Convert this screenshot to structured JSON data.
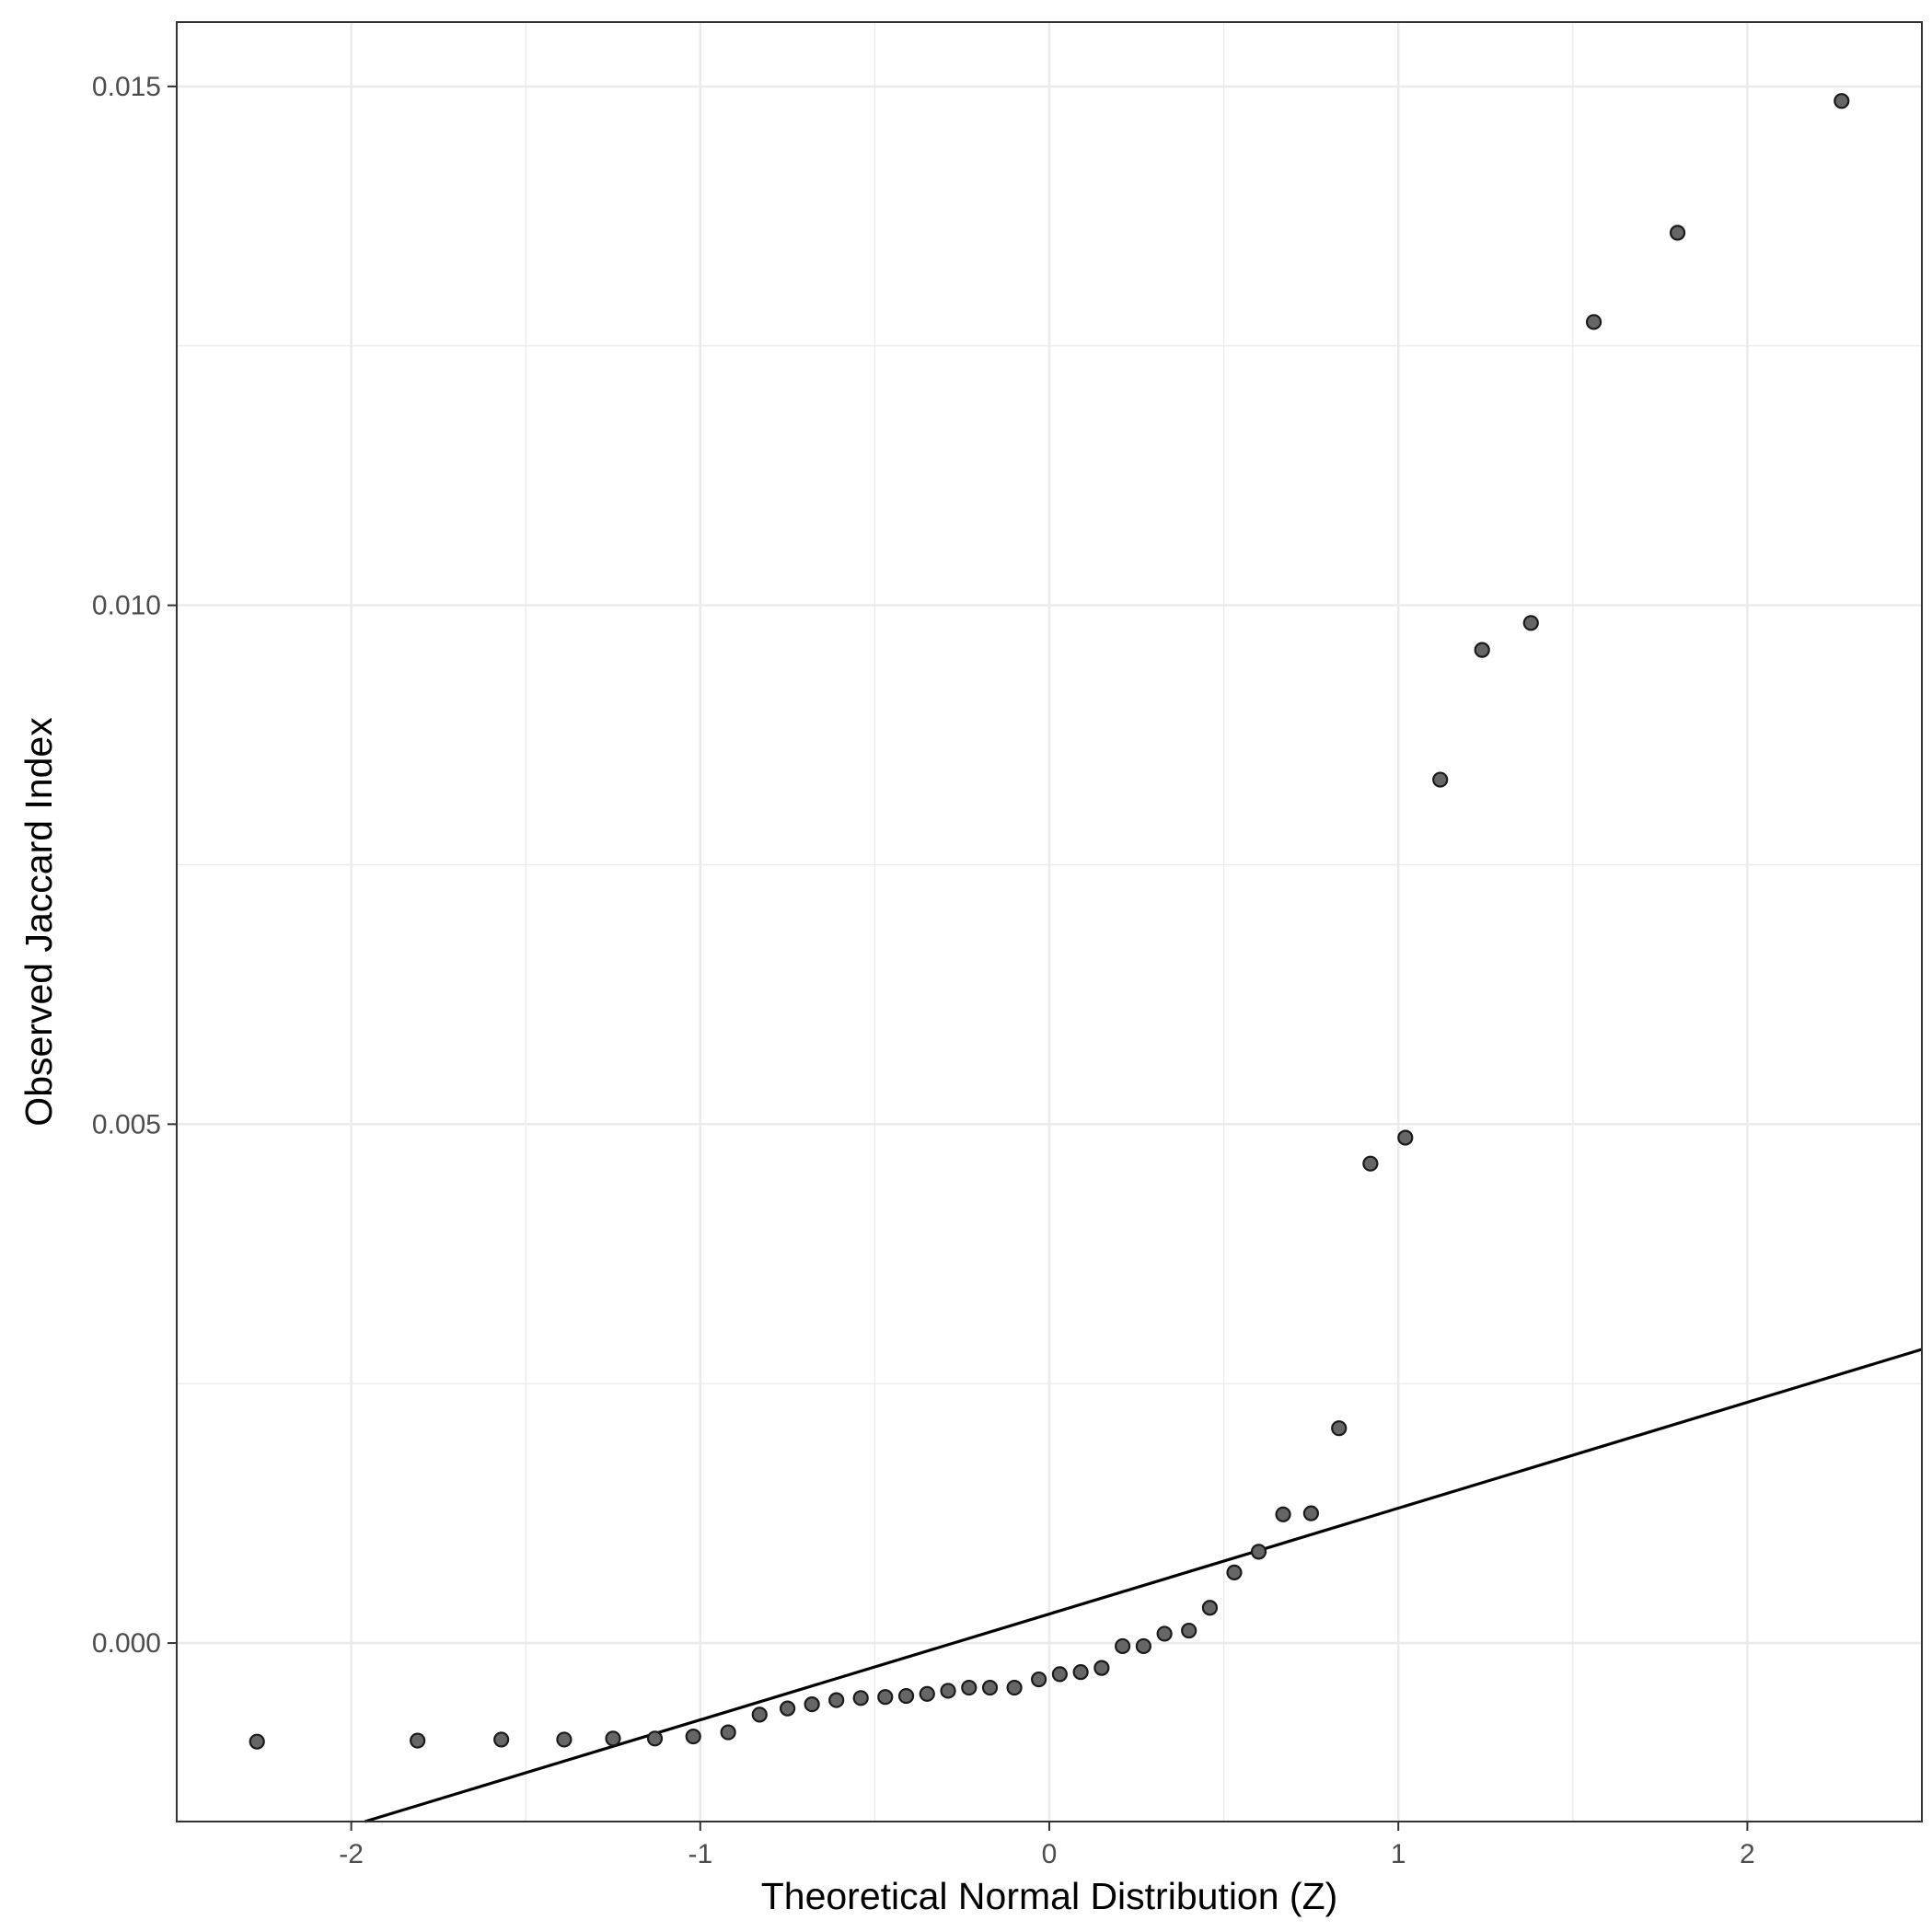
{
  "chart_data": {
    "type": "scatter",
    "title": "",
    "xlabel": "Theoretical Normal Distribution (Z)",
    "ylabel": "Observed Jaccard Index",
    "xlim": [
      -2.5,
      2.5
    ],
    "ylim": [
      -0.00172,
      0.01562
    ],
    "x_ticks": [
      -2,
      -1,
      0,
      1,
      2
    ],
    "x_tick_labels": [
      "-2",
      "-1",
      "0",
      "1",
      "2"
    ],
    "y_ticks": [
      0.0,
      0.005,
      0.01,
      0.015
    ],
    "y_tick_labels": [
      "0.000",
      "0.005",
      "0.010",
      "0.015"
    ],
    "grid": true,
    "legend": "none",
    "colors": {
      "point_fill": "#666666",
      "point_stroke": "#1a1a1a",
      "line": "#000000",
      "grid": "#ebebeb",
      "panel_border": "#333333"
    },
    "reference_line": {
      "slope": 0.00102,
      "intercept": 0.00028
    },
    "points": [
      {
        "x": -2.27,
        "y": -0.00095
      },
      {
        "x": -1.81,
        "y": -0.00094
      },
      {
        "x": -1.57,
        "y": -0.00093
      },
      {
        "x": -1.39,
        "y": -0.00093
      },
      {
        "x": -1.25,
        "y": -0.00092
      },
      {
        "x": -1.13,
        "y": -0.00092
      },
      {
        "x": -1.02,
        "y": -0.0009
      },
      {
        "x": -0.92,
        "y": -0.00086
      },
      {
        "x": -0.83,
        "y": -0.00069
      },
      {
        "x": -0.75,
        "y": -0.00063
      },
      {
        "x": -0.68,
        "y": -0.00059
      },
      {
        "x": -0.61,
        "y": -0.00055
      },
      {
        "x": -0.54,
        "y": -0.00053
      },
      {
        "x": -0.47,
        "y": -0.00052
      },
      {
        "x": -0.41,
        "y": -0.00051
      },
      {
        "x": -0.35,
        "y": -0.00049
      },
      {
        "x": -0.29,
        "y": -0.00046
      },
      {
        "x": -0.23,
        "y": -0.00043
      },
      {
        "x": -0.17,
        "y": -0.00043
      },
      {
        "x": -0.1,
        "y": -0.00043
      },
      {
        "x": -0.03,
        "y": -0.00035
      },
      {
        "x": 0.03,
        "y": -0.0003
      },
      {
        "x": 0.09,
        "y": -0.00028
      },
      {
        "x": 0.15,
        "y": -0.00024
      },
      {
        "x": 0.21,
        "y": -3e-05
      },
      {
        "x": 0.27,
        "y": -3e-05
      },
      {
        "x": 0.33,
        "y": 9e-05
      },
      {
        "x": 0.4,
        "y": 0.00012
      },
      {
        "x": 0.46,
        "y": 0.00034
      },
      {
        "x": 0.53,
        "y": 0.00068
      },
      {
        "x": 0.6,
        "y": 0.00088
      },
      {
        "x": 0.67,
        "y": 0.00124
      },
      {
        "x": 0.75,
        "y": 0.00125
      },
      {
        "x": 0.83,
        "y": 0.00207
      },
      {
        "x": 0.92,
        "y": 0.00462
      },
      {
        "x": 1.02,
        "y": 0.00487
      },
      {
        "x": 1.12,
        "y": 0.00832
      },
      {
        "x": 1.24,
        "y": 0.00957
      },
      {
        "x": 1.38,
        "y": 0.00983
      },
      {
        "x": 1.56,
        "y": 0.01273
      },
      {
        "x": 1.8,
        "y": 0.01359
      },
      {
        "x": 2.27,
        "y": 0.01486
      }
    ]
  }
}
